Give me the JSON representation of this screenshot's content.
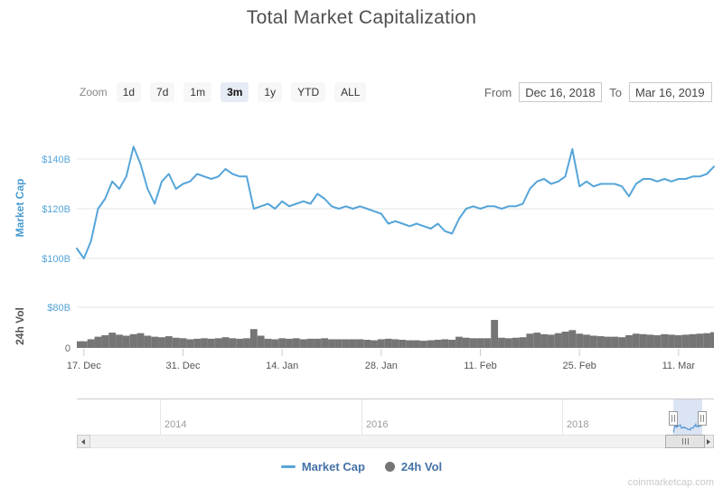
{
  "title": "Total Market Capitalization",
  "controls": {
    "zoom_label": "Zoom",
    "zoom_options": [
      "1d",
      "7d",
      "1m",
      "3m",
      "1y",
      "YTD",
      "ALL"
    ],
    "zoom_active": "3m",
    "from_label": "From",
    "from_value": "Dec 16, 2018",
    "to_label": "To",
    "to_value": "Mar 16, 2019"
  },
  "legend": [
    {
      "label": "Market Cap",
      "marker": "line",
      "color": "#55a5d9",
      "text_color": "#4572a7"
    },
    {
      "label": "24h Vol",
      "marker": "circle",
      "color": "#757575",
      "text_color": "#4572a7"
    }
  ],
  "navigator": {
    "year_labels": [
      "2014",
      "2016",
      "2018"
    ]
  },
  "watermark": "coinmarketcap.com",
  "chart_data": {
    "type": "line",
    "title": "Total Market Capitalization",
    "x_range_visible": [
      "Dec 16, 2018",
      "Mar 16, 2019"
    ],
    "x_ticks": [
      "17. Dec",
      "31. Dec",
      "14. Jan",
      "28. Jan",
      "11. Feb",
      "25. Feb",
      "11. Mar"
    ],
    "grid": "horizontal",
    "legend_position": "bottom-center",
    "dates": [
      "Dec 16",
      "Dec 17",
      "Dec 18",
      "Dec 19",
      "Dec 20",
      "Dec 21",
      "Dec 22",
      "Dec 23",
      "Dec 24",
      "Dec 25",
      "Dec 26",
      "Dec 27",
      "Dec 28",
      "Dec 29",
      "Dec 30",
      "Dec 31",
      "Jan 1",
      "Jan 2",
      "Jan 3",
      "Jan 4",
      "Jan 5",
      "Jan 6",
      "Jan 7",
      "Jan 8",
      "Jan 9",
      "Jan 10",
      "Jan 11",
      "Jan 12",
      "Jan 13",
      "Jan 14",
      "Jan 15",
      "Jan 16",
      "Jan 17",
      "Jan 18",
      "Jan 19",
      "Jan 20",
      "Jan 21",
      "Jan 22",
      "Jan 23",
      "Jan 24",
      "Jan 25",
      "Jan 26",
      "Jan 27",
      "Jan 28",
      "Jan 29",
      "Jan 30",
      "Jan 31",
      "Feb 1",
      "Feb 2",
      "Feb 3",
      "Feb 4",
      "Feb 5",
      "Feb 6",
      "Feb 7",
      "Feb 8",
      "Feb 9",
      "Feb 10",
      "Feb 11",
      "Feb 12",
      "Feb 13",
      "Feb 14",
      "Feb 15",
      "Feb 16",
      "Feb 17",
      "Feb 18",
      "Feb 19",
      "Feb 20",
      "Feb 21",
      "Feb 22",
      "Feb 23",
      "Feb 24",
      "Feb 25",
      "Feb 26",
      "Feb 27",
      "Feb 28",
      "Mar 1",
      "Mar 2",
      "Mar 3",
      "Mar 4",
      "Mar 5",
      "Mar 6",
      "Mar 7",
      "Mar 8",
      "Mar 9",
      "Mar 10",
      "Mar 11",
      "Mar 12",
      "Mar 13",
      "Mar 14",
      "Mar 15",
      "Mar 16"
    ],
    "panels": [
      {
        "name": "Market Cap",
        "type": "line",
        "color": "#55a5d9",
        "axis_title": "Market Cap",
        "unit": "billion USD",
        "ylim": [
          97,
          148
        ],
        "y_ticks": [
          {
            "label": "$140B",
            "value": 140,
            "color": "#55a5d9"
          },
          {
            "label": "$120B",
            "value": 120,
            "color": "#55a5d9"
          },
          {
            "label": "$100B",
            "value": 100,
            "color": "#55a5d9"
          }
        ],
        "values": [
          104,
          100,
          107,
          120,
          124,
          131,
          128,
          133,
          145,
          138,
          128,
          122,
          131,
          134,
          128,
          130,
          131,
          134,
          133,
          132,
          133,
          136,
          134,
          133,
          133,
          120,
          121,
          122,
          120,
          123,
          121,
          122,
          123,
          122,
          126,
          124,
          121,
          120,
          121,
          120,
          121,
          120,
          119,
          118,
          114,
          115,
          114,
          113,
          114,
          113,
          112,
          114,
          111,
          110,
          116,
          120,
          121,
          120,
          121,
          121,
          120,
          121,
          121,
          122,
          128,
          131,
          132,
          130,
          131,
          133,
          144,
          129,
          131,
          129,
          130,
          130,
          130,
          129,
          125,
          130,
          132,
          132,
          131,
          132,
          131,
          132,
          132,
          133,
          133,
          134,
          137
        ]
      },
      {
        "name": "24h Vol",
        "type": "column",
        "color": "#757575",
        "axis_title": "24h Vol",
        "unit": "billion USD",
        "ylim": [
          0,
          80
        ],
        "y_ticks": [
          {
            "label": "$80B",
            "value": 80,
            "color": "#55a5d9"
          },
          {
            "label": "0",
            "value": 0,
            "color": "#666666"
          }
        ],
        "values": [
          13,
          13,
          17,
          22,
          25,
          30,
          26,
          24,
          27,
          29,
          24,
          22,
          21,
          23,
          20,
          19,
          17,
          18,
          19,
          18,
          19,
          21,
          19,
          18,
          19,
          37,
          24,
          18,
          17,
          19,
          18,
          19,
          17,
          18,
          18,
          19,
          17,
          17,
          17,
          17,
          17,
          16,
          15,
          17,
          18,
          17,
          16,
          15,
          15,
          14,
          15,
          16,
          17,
          16,
          22,
          20,
          19,
          19,
          19,
          55,
          20,
          19,
          20,
          21,
          28,
          30,
          27,
          26,
          29,
          32,
          35,
          28,
          26,
          24,
          23,
          22,
          22,
          21,
          25,
          28,
          27,
          26,
          25,
          27,
          26,
          25,
          26,
          27,
          28,
          29,
          31
        ]
      }
    ]
  }
}
